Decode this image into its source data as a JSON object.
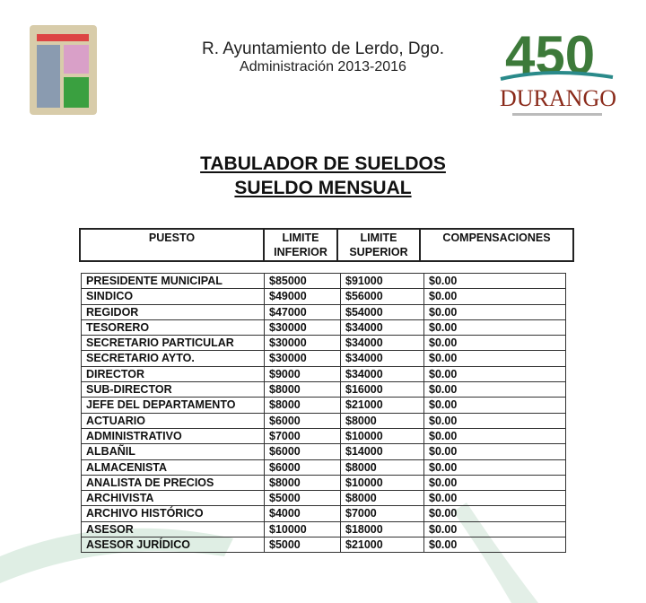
{
  "header": {
    "line1": "R. Ayuntamiento de Lerdo, Dgo.",
    "line2": "Administración 2013-2016",
    "left_logo": "Lerdo coat of arms",
    "right_logo": "450 Durango"
  },
  "title": {
    "line1": "TABULADOR DE SUELDOS",
    "line2": "SUELDO MENSUAL"
  },
  "table": {
    "columns": [
      "PUESTO",
      "LIMITE INFERIOR",
      "LIMITE SUPERIOR",
      "COMPENSACIONES"
    ],
    "rows": [
      [
        "PRESIDENTE MUNICIPAL",
        "$85000",
        "$91000",
        "$0.00"
      ],
      [
        "SINDICO",
        "$49000",
        "$56000",
        "$0.00"
      ],
      [
        "REGIDOR",
        "$47000",
        "$54000",
        "$0.00"
      ],
      [
        "TESORERO",
        "$30000",
        "$34000",
        "$0.00"
      ],
      [
        "SECRETARIO PARTICULAR",
        "$30000",
        "$34000",
        "$0.00"
      ],
      [
        "SECRETARIO AYTO.",
        "$30000",
        "$34000",
        "$0.00"
      ],
      [
        "DIRECTOR",
        "$9000",
        "$34000",
        "$0.00"
      ],
      [
        "SUB-DIRECTOR",
        "$8000",
        "$16000",
        "$0.00"
      ],
      [
        "JEFE DEL DEPARTAMENTO",
        "$8000",
        "$21000",
        "$0.00"
      ],
      [
        "ACTUARIO",
        "$6000",
        "$8000",
        "$0.00"
      ],
      [
        "ADMINISTRATIVO",
        "$7000",
        "$10000",
        "$0.00"
      ],
      [
        "ALBAÑIL",
        "$6000",
        "$14000",
        "$0.00"
      ],
      [
        "ALMACENISTA",
        "$6000",
        "$8000",
        "$0.00"
      ],
      [
        "ANALISTA DE PRECIOS",
        "$8000",
        "$10000",
        "$0.00"
      ],
      [
        "ARCHIVISTA",
        "$5000",
        "$8000",
        "$0.00"
      ],
      [
        "ARCHIVO HISTÓRICO",
        "$4000",
        "$7000",
        "$0.00"
      ],
      [
        "ASESOR",
        "$10000",
        "$18000",
        "$0.00"
      ],
      [
        "ASESOR JURÍDICO",
        "$5000",
        "$21000",
        "$0.00"
      ]
    ]
  }
}
